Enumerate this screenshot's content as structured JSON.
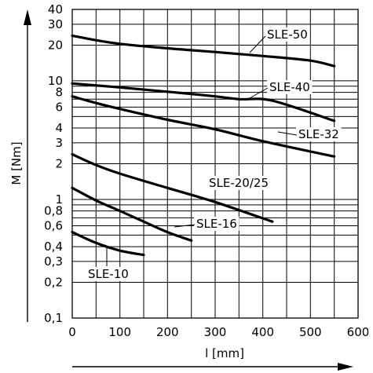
{
  "chart_data": {
    "type": "line",
    "xlabel": "l [mm]",
    "ylabel": "M [Nm]",
    "x_scale": "linear",
    "y_scale": "log",
    "xlim": [
      0,
      600
    ],
    "ylim": [
      0.1,
      40
    ],
    "x_ticks": [
      0,
      100,
      200,
      300,
      400,
      500,
      600
    ],
    "x_tick_labels": [
      "0",
      "100",
      "200",
      "300",
      "400",
      "500",
      "600"
    ],
    "y_ticks": [
      0.1,
      0.2,
      0.3,
      0.4,
      0.6,
      0.8,
      1,
      2,
      3,
      4,
      6,
      8,
      10,
      20,
      30,
      40
    ],
    "y_tick_labels": [
      "0,1",
      "0,2",
      "0,3",
      "0,4",
      "0,6",
      "0,8",
      "1",
      "2",
      "3",
      "4",
      "6",
      "8",
      "10",
      "20",
      "30",
      "40"
    ],
    "grid": true,
    "legend": "none",
    "series": [
      {
        "name": "SLE-50",
        "x": [
          0,
          50,
          100,
          200,
          300,
          400,
          500,
          550
        ],
        "y": [
          24,
          22,
          20.5,
          18.8,
          17.5,
          16.2,
          14.8,
          13.3
        ]
      },
      {
        "name": "SLE-40",
        "x": [
          0,
          100,
          200,
          300,
          350,
          420,
          550
        ],
        "y": [
          9.5,
          8.8,
          8.1,
          7.4,
          7.0,
          6.8,
          4.6
        ]
      },
      {
        "name": "SLE-32",
        "x": [
          0,
          50,
          100,
          200,
          300,
          400,
          550
        ],
        "y": [
          7.4,
          6.5,
          5.8,
          4.7,
          3.9,
          3.1,
          2.3
        ]
      },
      {
        "name": "SLE-20/25",
        "x": [
          0,
          50,
          100,
          200,
          300,
          420
        ],
        "y": [
          2.4,
          1.95,
          1.65,
          1.25,
          0.95,
          0.65
        ]
      },
      {
        "name": "SLE-16",
        "x": [
          0,
          50,
          100,
          150,
          200,
          250
        ],
        "y": [
          1.25,
          0.98,
          0.8,
          0.65,
          0.53,
          0.45
        ]
      },
      {
        "name": "SLE-10",
        "x": [
          0,
          50,
          100,
          150
        ],
        "y": [
          0.53,
          0.43,
          0.37,
          0.34
        ]
      }
    ]
  }
}
